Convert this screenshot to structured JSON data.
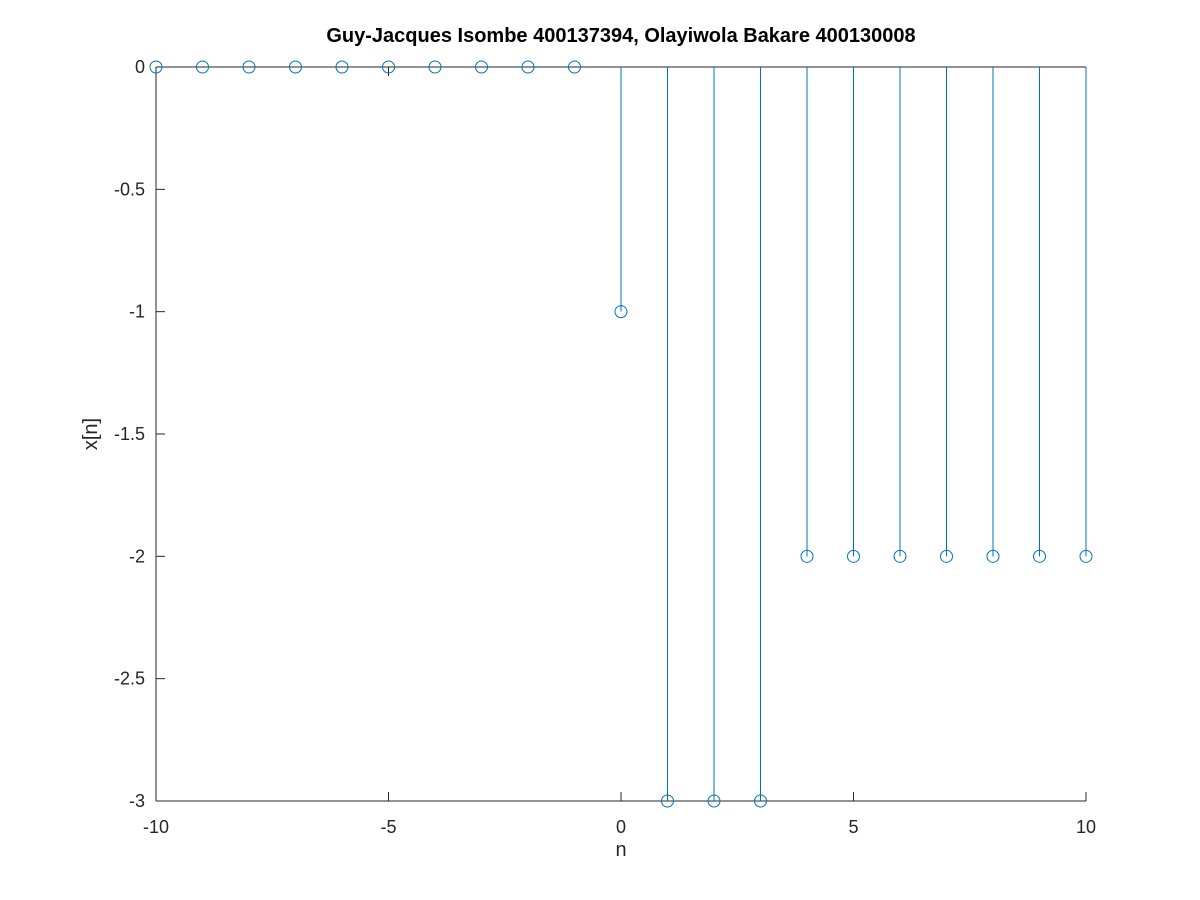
{
  "chart_data": {
    "type": "stem",
    "title": "Guy-Jacques Isombe 400137394, Olayiwola Bakare 400130008",
    "xlabel": "n",
    "ylabel": "x[n]",
    "xlim": [
      -10,
      10
    ],
    "ylim": [
      -3,
      0
    ],
    "xticks": [
      "-10",
      "-5",
      "0",
      "5",
      "10"
    ],
    "yticks": [
      "0",
      "-0.5",
      "-1",
      "-1.5",
      "-2",
      "-2.5",
      "-3"
    ],
    "grid": false,
    "baseline": 0,
    "marker": "circle",
    "color": "#0072BD",
    "series": [
      {
        "x": [
          -10,
          -9,
          -8,
          -7,
          -6,
          -5,
          -4,
          -3,
          -2,
          -1,
          0,
          1,
          2,
          3,
          4,
          5,
          6,
          7,
          8,
          9,
          10
        ],
        "y": [
          0,
          0,
          0,
          0,
          0,
          0,
          0,
          0,
          0,
          0,
          -1,
          -3,
          -3,
          -3,
          -2,
          -2,
          -2,
          -2,
          -2,
          -2,
          -2
        ]
      }
    ]
  }
}
